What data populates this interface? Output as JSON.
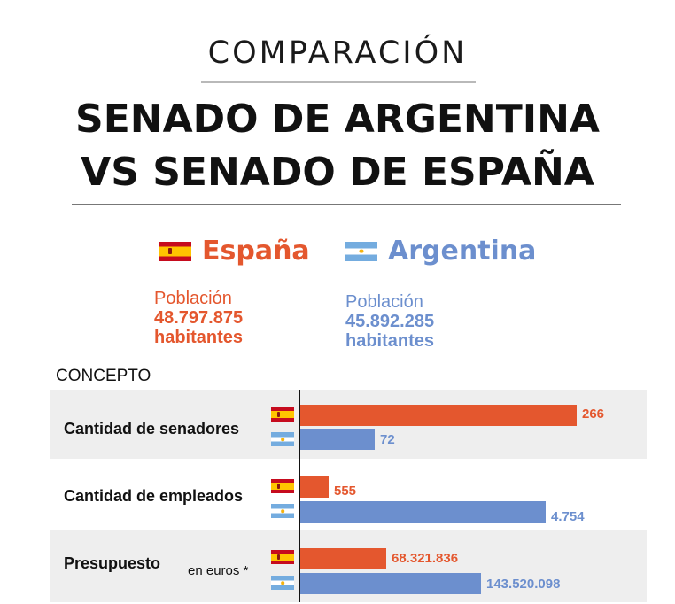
{
  "header": {
    "kicker": "COMPARACIÓN",
    "title_line1": "SENADO DE ARGENTINA",
    "title_line2": "VS SENADO DE ESPAÑA"
  },
  "countries": {
    "spain": {
      "name": "España",
      "population_label": "Población",
      "population_value": "48.797.875",
      "population_unit": "habitantes",
      "color": "#e4572e"
    },
    "argentina": {
      "name": "Argentina",
      "population_label": "Población",
      "population_value": "45.892.285",
      "population_unit": "habitantes",
      "color": "#6c8fce"
    }
  },
  "concept_header": "CONCEPTO",
  "chart_data": {
    "type": "bar",
    "orientation": "horizontal",
    "categories": [
      "Cantidad de senadores",
      "Cantidad de empleados",
      "Presupuesto"
    ],
    "category_notes": [
      "",
      "",
      "en euros *"
    ],
    "series": [
      {
        "name": "España",
        "values": [
          266,
          555,
          68321836
        ],
        "labels": [
          "266",
          "555",
          "68.321.836"
        ]
      },
      {
        "name": "Argentina",
        "values": [
          72,
          4754,
          143520098
        ],
        "labels": [
          "72",
          "4.754",
          "143.520.098"
        ]
      }
    ],
    "scale": "independent per category",
    "grid": false
  }
}
